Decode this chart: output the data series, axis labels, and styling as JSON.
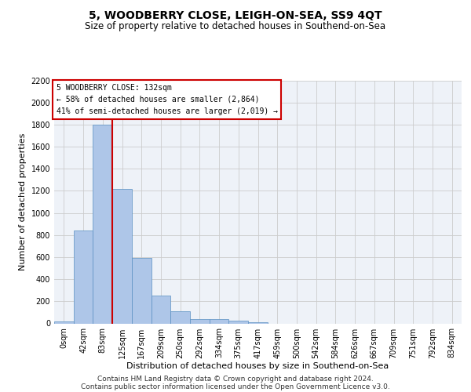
{
  "title": "5, WOODBERRY CLOSE, LEIGH-ON-SEA, SS9 4QT",
  "subtitle": "Size of property relative to detached houses in Southend-on-Sea",
  "xlabel": "Distribution of detached houses by size in Southend-on-Sea",
  "ylabel": "Number of detached properties",
  "footer_line1": "Contains HM Land Registry data © Crown copyright and database right 2024.",
  "footer_line2": "Contains public sector information licensed under the Open Government Licence v3.0.",
  "annotation_title": "5 WOODBERRY CLOSE: 132sqm",
  "annotation_line2": "← 58% of detached houses are smaller (2,864)",
  "annotation_line3": "41% of semi-detached houses are larger (2,019) →",
  "bar_labels": [
    "0sqm",
    "42sqm",
    "83sqm",
    "125sqm",
    "167sqm",
    "209sqm",
    "250sqm",
    "292sqm",
    "334sqm",
    "375sqm",
    "417sqm",
    "459sqm",
    "500sqm",
    "542sqm",
    "584sqm",
    "626sqm",
    "667sqm",
    "709sqm",
    "751sqm",
    "792sqm",
    "834sqm"
  ],
  "bar_values": [
    20,
    840,
    1800,
    1220,
    590,
    255,
    110,
    40,
    40,
    25,
    10,
    0,
    0,
    0,
    0,
    0,
    0,
    0,
    0,
    0,
    0
  ],
  "bar_color": "#aec6e8",
  "bar_edge_color": "#5a8fc2",
  "vline_color": "#cc0000",
  "ylim": [
    0,
    2200
  ],
  "yticks": [
    0,
    200,
    400,
    600,
    800,
    1000,
    1200,
    1400,
    1600,
    1800,
    2000,
    2200
  ],
  "grid_color": "#cccccc",
  "bg_color": "#eef2f8",
  "annotation_box_color": "#cc0000",
  "title_fontsize": 10,
  "subtitle_fontsize": 8.5,
  "axis_label_fontsize": 8,
  "tick_fontsize": 7,
  "footer_fontsize": 6.5,
  "annot_fontsize": 7
}
